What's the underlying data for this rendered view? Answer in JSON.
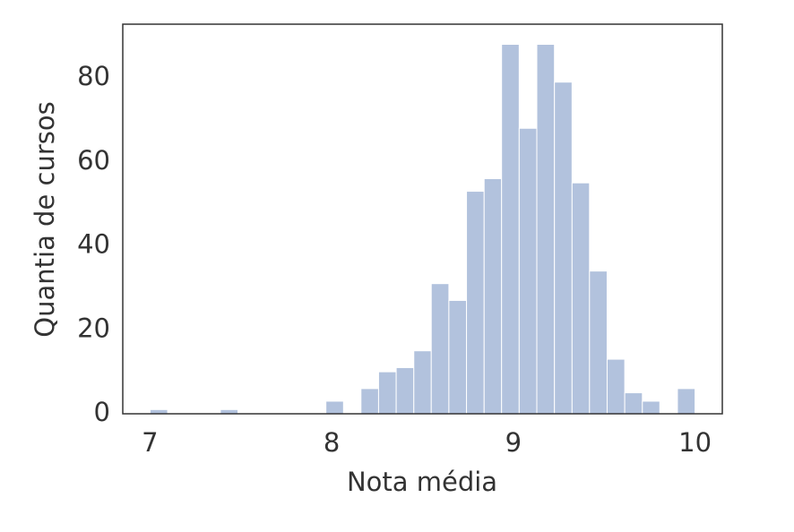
{
  "chart_data": {
    "type": "histogram",
    "xlabel": "Nota média",
    "ylabel": "Quantia de cursos",
    "bins": [
      7.0,
      7.097,
      7.194,
      7.29,
      7.387,
      7.484,
      7.581,
      7.677,
      7.774,
      7.871,
      7.968,
      8.065,
      8.161,
      8.258,
      8.355,
      8.452,
      8.548,
      8.645,
      8.742,
      8.839,
      8.935,
      9.032,
      9.129,
      9.226,
      9.323,
      9.419,
      9.516,
      9.613,
      9.71,
      9.806,
      9.903,
      10.0
    ],
    "values": [
      1,
      0,
      0,
      0,
      1,
      0,
      0,
      0,
      0,
      0,
      3,
      0,
      6,
      10,
      11,
      15,
      31,
      27,
      53,
      56,
      88,
      68,
      88,
      79,
      55,
      34,
      13,
      5,
      3,
      0,
      6
    ],
    "color": "#b2c2dd",
    "xlim": [
      6.85,
      10.15
    ],
    "xticks": [
      7,
      8,
      9,
      10
    ],
    "ylim": [
      0,
      92.8
    ],
    "yticks": [
      0,
      20,
      40,
      60,
      80
    ],
    "grid": false
  }
}
